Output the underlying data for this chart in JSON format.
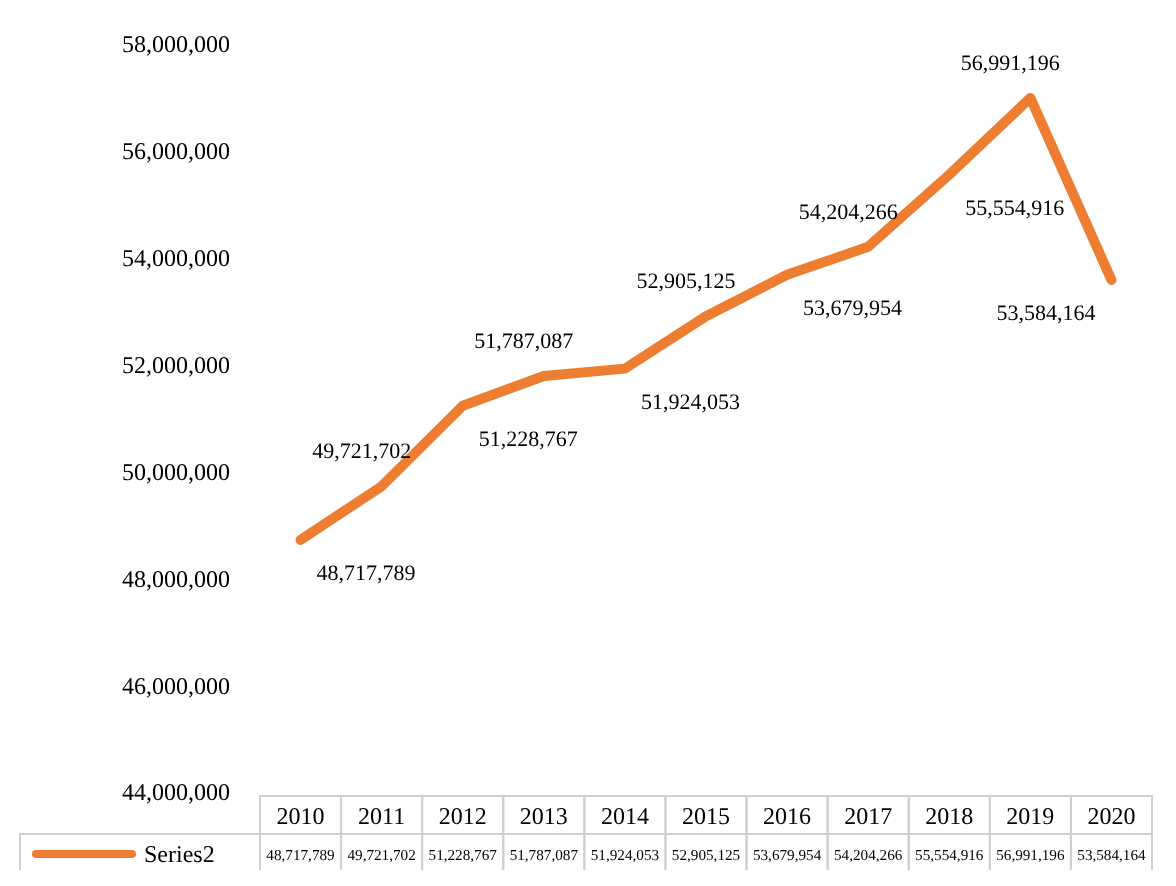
{
  "chart_data": {
    "type": "line",
    "categories": [
      "2010",
      "2011",
      "2012",
      "2013",
      "2014",
      "2015",
      "2016",
      "2017",
      "2018",
      "2019",
      "2020"
    ],
    "series": [
      {
        "name": "Series2",
        "color": "#ed7d31",
        "values": [
          48717789,
          49721702,
          51228767,
          51787087,
          51924053,
          52905125,
          53679954,
          54204266,
          55554916,
          56991196,
          53584164
        ],
        "value_labels": [
          "48,717,789",
          "49,721,702",
          "51,228,767",
          "51,787,087",
          "51,924,053",
          "52,905,125",
          "53,679,954",
          "54,204,266",
          "55,554,916",
          "56,991,196",
          "53,584,164"
        ]
      }
    ],
    "ylim": [
      44000000,
      58000000
    ],
    "yticks": [
      {
        "value": 44000000,
        "label": "44,000,000"
      },
      {
        "value": 46000000,
        "label": "46,000,000"
      },
      {
        "value": 48000000,
        "label": "48,000,000"
      },
      {
        "value": 50000000,
        "label": "50,000,000"
      },
      {
        "value": 52000000,
        "label": "52,000,000"
      },
      {
        "value": 54000000,
        "label": "54,000,000"
      },
      {
        "value": 56000000,
        "label": "56,000,000"
      },
      {
        "value": 58000000,
        "label": "58,000,000"
      }
    ],
    "legend": "bottom",
    "marker": "none",
    "line_style": "solid"
  }
}
